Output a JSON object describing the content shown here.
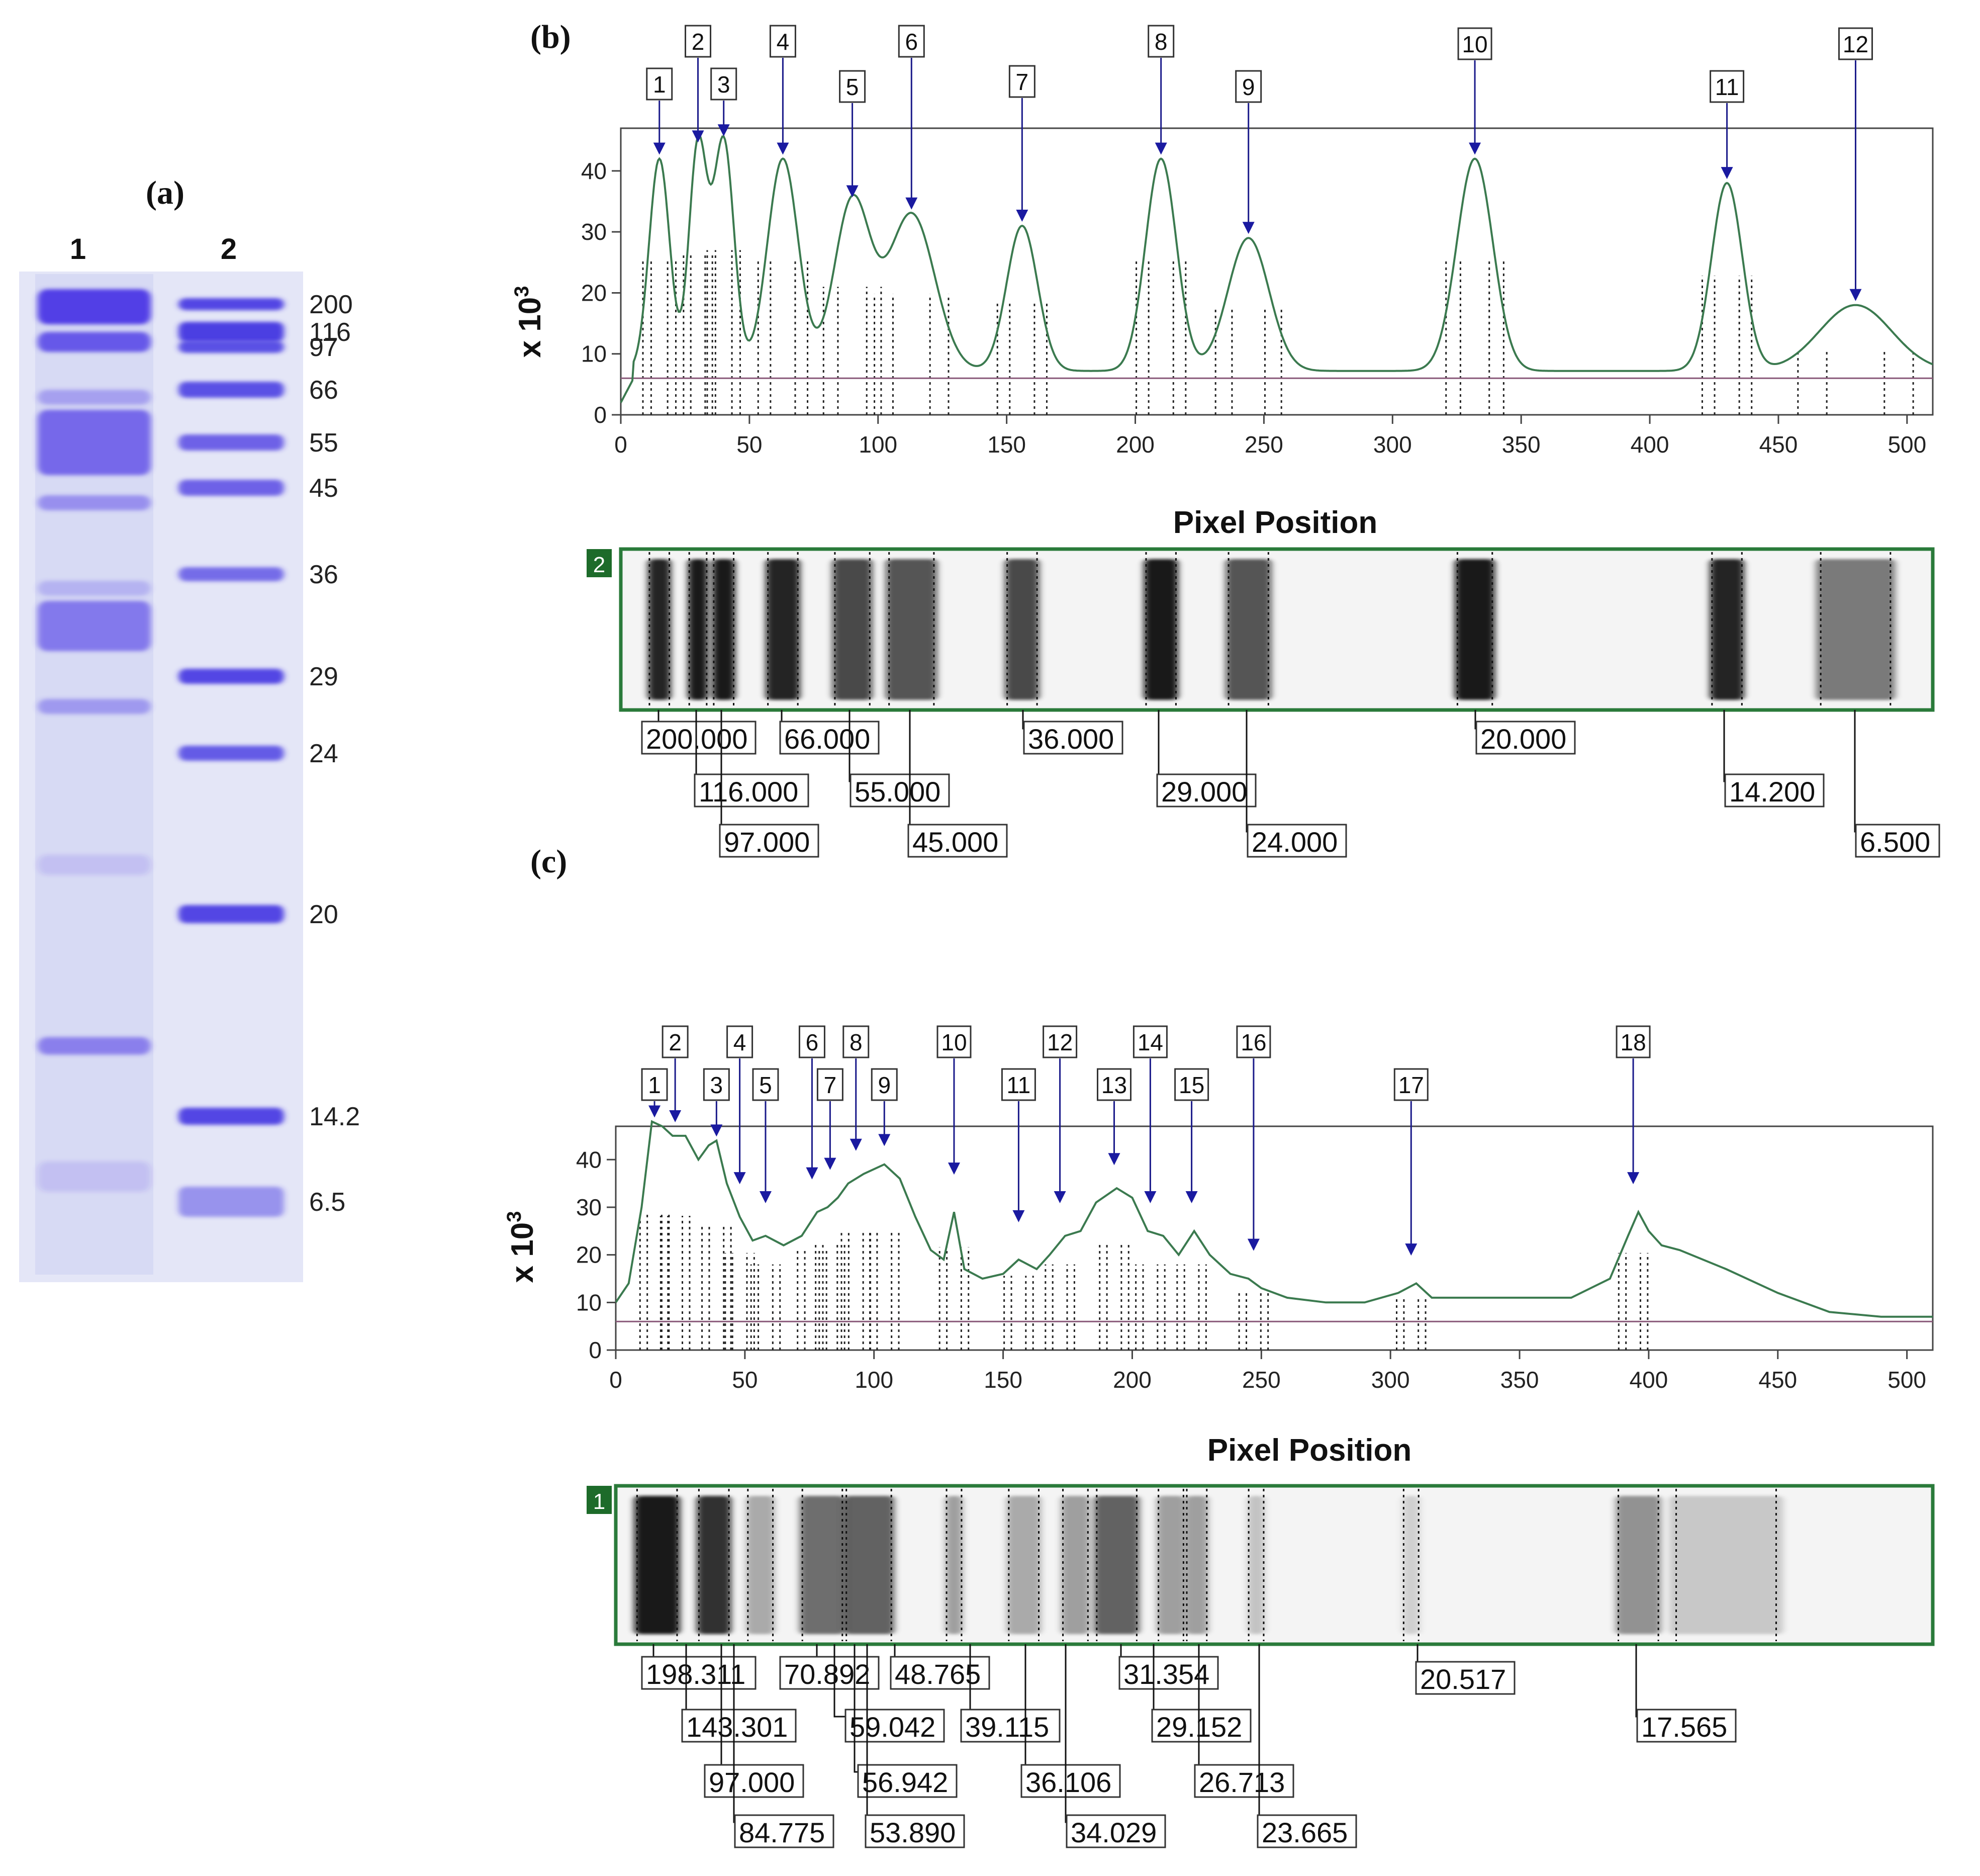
{
  "panel_a": {
    "label": "(a)",
    "lanes": [
      {
        "label": "1"
      },
      {
        "label": "2"
      }
    ],
    "markers": [
      "200",
      "116",
      "97",
      "66",
      "55",
      "45",
      "36",
      "29",
      "24",
      "20",
      "14.2",
      "6.5"
    ]
  },
  "panel_b": {
    "label": "(b)",
    "lane_tag": "2",
    "x_label": "Pixel Position",
    "y_label": "x 10",
    "y_label_sup": "3",
    "mw_labels": [
      "200.000",
      "116.000",
      "97.000",
      "66.000",
      "55.000",
      "45.000",
      "36.000",
      "29.000",
      "24.000",
      "20.000",
      "14.200",
      "6.500"
    ]
  },
  "panel_c": {
    "label": "(c)",
    "lane_tag": "1",
    "x_label": "Pixel Position",
    "y_label": "x 10",
    "y_label_sup": "3",
    "mw_labels": [
      "198.311",
      "143.301",
      "97.000",
      "84.775",
      "70.892",
      "59.042",
      "56.942",
      "53.890",
      "48.765",
      "39.115",
      "36.106",
      "34.029",
      "31.354",
      "29.152",
      "26.713",
      "23.665",
      "20.517",
      "17.565"
    ]
  },
  "chart_data": [
    {
      "type": "line",
      "title": "(b)",
      "xlabel": "Pixel Position",
      "ylabel": "x 10^3",
      "xlim": [
        0,
        510
      ],
      "ylim": [
        0,
        47
      ],
      "xticks": [
        0,
        50,
        100,
        150,
        200,
        250,
        300,
        350,
        400,
        450,
        500
      ],
      "yticks": [
        0,
        10,
        20,
        30,
        40
      ],
      "baseline": 6,
      "peaks": [
        {
          "label": "1",
          "x": 15,
          "y": 42,
          "width": 4
        },
        {
          "label": "2",
          "x": 30,
          "y": 44,
          "width": 3.5
        },
        {
          "label": "3",
          "x": 40,
          "y": 45,
          "width": 4
        },
        {
          "label": "4",
          "x": 63,
          "y": 42,
          "width": 6
        },
        {
          "label": "5",
          "x": 90,
          "y": 35,
          "width": 7
        },
        {
          "label": "6",
          "x": 113,
          "y": 33,
          "width": 9
        },
        {
          "label": "7",
          "x": 156,
          "y": 31,
          "width": 6
        },
        {
          "label": "8",
          "x": 210,
          "y": 42,
          "width": 6
        },
        {
          "label": "9",
          "x": 244,
          "y": 29,
          "width": 8
        },
        {
          "label": "10",
          "x": 332,
          "y": 42,
          "width": 7
        },
        {
          "label": "11",
          "x": 430,
          "y": 38,
          "width": 6
        },
        {
          "label": "12",
          "x": 480,
          "y": 18,
          "width": 14
        }
      ],
      "mw_kda": [
        200.0,
        116.0,
        97.0,
        66.0,
        55.0,
        45.0,
        36.0,
        29.0,
        24.0,
        20.0,
        14.2,
        6.5
      ]
    },
    {
      "type": "line",
      "title": "(c)",
      "xlabel": "Pixel Position",
      "ylabel": "x 10^3",
      "xlim": [
        0,
        510
      ],
      "ylim": [
        0,
        47
      ],
      "xticks": [
        0,
        50,
        100,
        150,
        200,
        250,
        300,
        350,
        400,
        450,
        500
      ],
      "yticks": [
        0,
        10,
        20,
        30,
        40
      ],
      "baseline": 6,
      "curve": [
        [
          0,
          10
        ],
        [
          5,
          14
        ],
        [
          10,
          30
        ],
        [
          14,
          48
        ],
        [
          18,
          47
        ],
        [
          22,
          45
        ],
        [
          27,
          45
        ],
        [
          32,
          40
        ],
        [
          36,
          43
        ],
        [
          39,
          44
        ],
        [
          43,
          35
        ],
        [
          48,
          28
        ],
        [
          53,
          23
        ],
        [
          58,
          24
        ],
        [
          65,
          22
        ],
        [
          72,
          24
        ],
        [
          78,
          29
        ],
        [
          82,
          30
        ],
        [
          86,
          32
        ],
        [
          90,
          35
        ],
        [
          96,
          37
        ],
        [
          104,
          39
        ],
        [
          110,
          36
        ],
        [
          116,
          28
        ],
        [
          122,
          21
        ],
        [
          127,
          19
        ],
        [
          131,
          29
        ],
        [
          135,
          17
        ],
        [
          142,
          15
        ],
        [
          150,
          16
        ],
        [
          156,
          19
        ],
        [
          163,
          17
        ],
        [
          168,
          20
        ],
        [
          174,
          24
        ],
        [
          180,
          25
        ],
        [
          186,
          31
        ],
        [
          194,
          34
        ],
        [
          200,
          32
        ],
        [
          206,
          25
        ],
        [
          212,
          24
        ],
        [
          218,
          20
        ],
        [
          224,
          25
        ],
        [
          230,
          20
        ],
        [
          238,
          16
        ],
        [
          245,
          15
        ],
        [
          250,
          13
        ],
        [
          260,
          11
        ],
        [
          275,
          10
        ],
        [
          290,
          10
        ],
        [
          303,
          12
        ],
        [
          310,
          14
        ],
        [
          316,
          11
        ],
        [
          330,
          11
        ],
        [
          350,
          11
        ],
        [
          370,
          11
        ],
        [
          385,
          15
        ],
        [
          392,
          24
        ],
        [
          396,
          29
        ],
        [
          400,
          25
        ],
        [
          405,
          22
        ],
        [
          412,
          21
        ],
        [
          430,
          17
        ],
        [
          450,
          12
        ],
        [
          470,
          8
        ],
        [
          490,
          7
        ],
        [
          510,
          7
        ]
      ],
      "peaks": [
        {
          "label": "1",
          "x": 15,
          "y": 48
        },
        {
          "label": "2",
          "x": 23,
          "y": 47
        },
        {
          "label": "3",
          "x": 39,
          "y": 44
        },
        {
          "label": "4",
          "x": 48,
          "y": 34
        },
        {
          "label": "5",
          "x": 58,
          "y": 30
        },
        {
          "label": "6",
          "x": 76,
          "y": 35
        },
        {
          "label": "7",
          "x": 83,
          "y": 37
        },
        {
          "label": "8",
          "x": 93,
          "y": 41
        },
        {
          "label": "9",
          "x": 104,
          "y": 42
        },
        {
          "label": "10",
          "x": 131,
          "y": 36
        },
        {
          "label": "11",
          "x": 156,
          "y": 26
        },
        {
          "label": "12",
          "x": 172,
          "y": 30
        },
        {
          "label": "13",
          "x": 193,
          "y": 38
        },
        {
          "label": "14",
          "x": 207,
          "y": 30
        },
        {
          "label": "15",
          "x": 223,
          "y": 30
        },
        {
          "label": "16",
          "x": 247,
          "y": 20
        },
        {
          "label": "17",
          "x": 308,
          "y": 19
        },
        {
          "label": "18",
          "x": 394,
          "y": 34
        }
      ],
      "mw_kda": [
        198.311,
        143.301,
        97.0,
        84.775,
        70.892,
        59.042,
        56.942,
        53.89,
        48.765,
        39.115,
        36.106,
        34.029,
        31.354,
        29.152,
        26.713,
        23.665,
        20.517,
        17.565
      ]
    }
  ]
}
